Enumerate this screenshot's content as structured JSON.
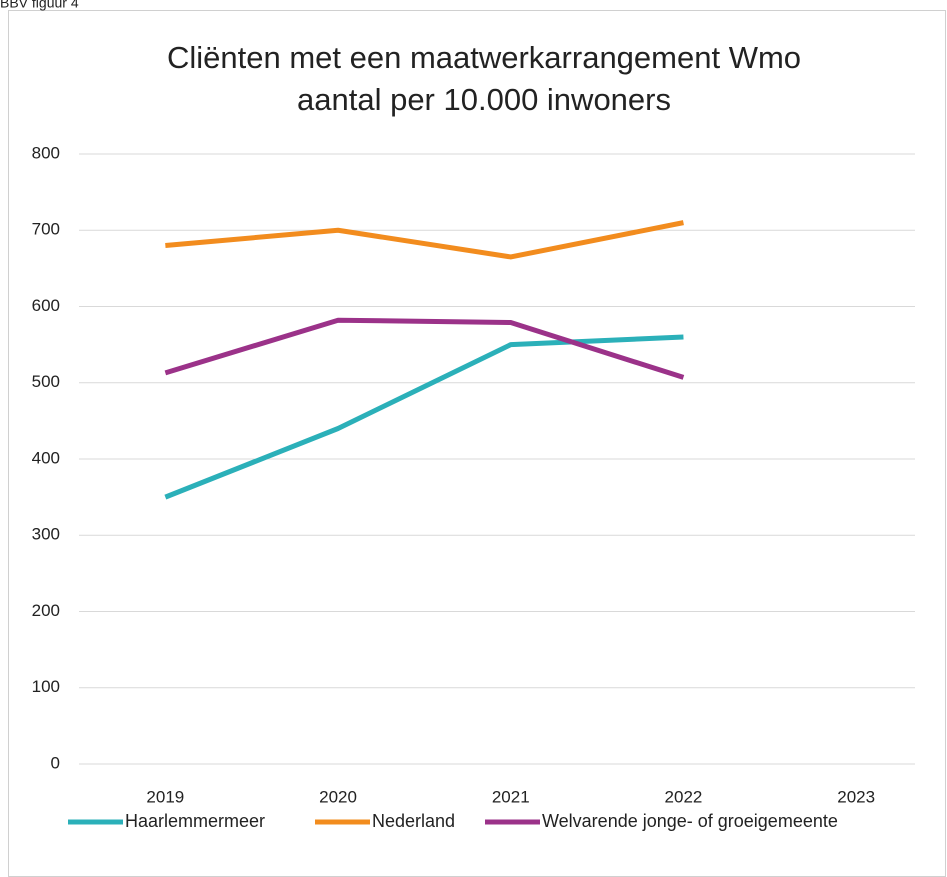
{
  "caption": "BBV figuur 4",
  "chart_data": {
    "type": "line",
    "title": "Cliënten met een maatwerkarrangement Wmo",
    "subtitle": "aantal per 10.000 inwoners",
    "categories": [
      "2019",
      "2020",
      "2021",
      "2022",
      "2023"
    ],
    "series": [
      {
        "name": "Haarlemmermeer",
        "color": "#2bb0b9",
        "values": [
          350,
          440,
          550,
          560,
          null
        ]
      },
      {
        "name": "Nederland",
        "color": "#f28c1e",
        "values": [
          680,
          700,
          665,
          710,
          null
        ]
      },
      {
        "name": "Welvarende jonge- of groeigemeente",
        "color": "#9b3289",
        "values": [
          513,
          582,
          579,
          507,
          null
        ]
      }
    ],
    "ylim": [
      0,
      800
    ],
    "yticks": [
      0,
      100,
      200,
      300,
      400,
      500,
      600,
      700,
      800
    ],
    "grid": true,
    "legend": "bottom"
  }
}
